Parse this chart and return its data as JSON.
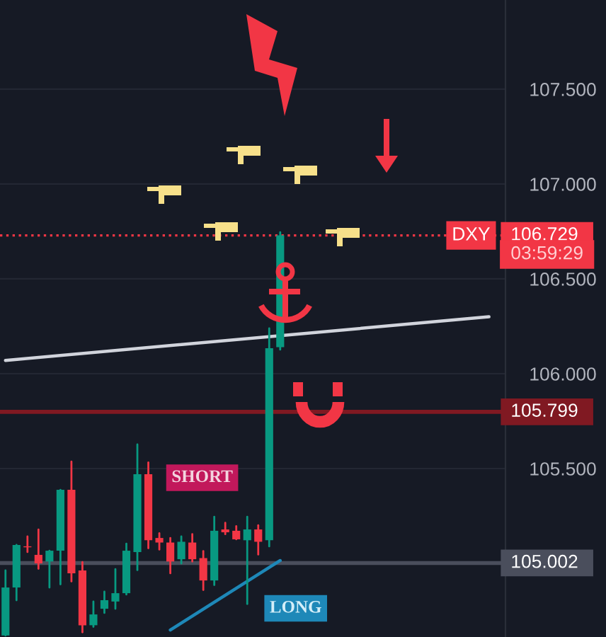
{
  "chart_data": {
    "type": "candlestick",
    "categories": [
      null,
      null,
      null,
      null,
      null,
      null,
      null,
      null,
      null,
      null,
      null,
      null,
      null,
      null,
      null,
      null,
      null,
      null,
      null,
      null,
      null,
      null,
      null,
      null,
      null,
      null,
      null,
      null,
      null,
      null,
      null,
      null,
      null,
      null,
      null,
      null,
      null,
      null,
      null,
      null,
      null,
      null,
      null,
      null,
      null,
      null
    ],
    "ohlc": [
      [
        104.62,
        104.963,
        104.62,
        104.873
      ],
      [
        104.873,
        105.097,
        104.806,
        105.097
      ],
      [
        105.09,
        105.142,
        105.06,
        105.085
      ],
      [
        105.045,
        105.179,
        104.972,
        105.0
      ],
      [
        105.01,
        105.067,
        104.873,
        105.067
      ],
      [
        105.067,
        105.388,
        104.89,
        105.388
      ],
      [
        105.388,
        105.537,
        104.905,
        104.948
      ],
      [
        104.963,
        105.007,
        104.637,
        104.674
      ],
      [
        104.674,
        104.799,
        104.666,
        104.731
      ],
      [
        104.761,
        104.851,
        104.739,
        104.806
      ],
      [
        104.799,
        104.97,
        104.761,
        104.843
      ],
      [
        104.843,
        105.104,
        104.836,
        105.067
      ],
      [
        105.06,
        105.627,
        104.965,
        105.47
      ],
      [
        105.47,
        105.532,
        105.08,
        105.122
      ],
      [
        105.134,
        105.159,
        105.073,
        105.11
      ],
      [
        105.11,
        105.134,
        104.948,
        105.01
      ],
      [
        105.022,
        105.142,
        105.0,
        105.114
      ],
      [
        105.11,
        105.154,
        105.01,
        105.022
      ],
      [
        105.028,
        105.065,
        104.86,
        104.91
      ],
      [
        104.91,
        105.246,
        104.886,
        105.172
      ],
      [
        105.179,
        105.214,
        105.154,
        105.164
      ],
      [
        105.172,
        105.196,
        105.127,
        105.127
      ],
      [
        105.122,
        105.246,
        104.786,
        105.179
      ],
      [
        105.179,
        105.201,
        105.047,
        105.114
      ],
      [
        105.122,
        106.239,
        105.09,
        106.134
      ],
      [
        106.14,
        106.746,
        106.127,
        106.729
      ],
      null,
      null,
      null,
      null,
      null,
      null,
      null,
      null,
      null,
      null,
      null,
      null,
      null,
      null,
      null,
      null,
      null,
      null,
      null,
      null
    ],
    "colors": [
      "#089981",
      "#089981",
      "#f23645",
      "#f23645",
      "#089981",
      "#089981",
      "#f23645",
      "#f23645",
      "#089981",
      "#089981",
      "#089981",
      "#089981",
      "#089981",
      "#f23645",
      "#f23645",
      "#f23645",
      "#089981",
      "#f23645",
      "#f23645",
      "#089981",
      "#f23645",
      "#f23645",
      "#089981",
      "#f23645",
      "#089981",
      "#089981",
      null,
      null,
      null,
      null,
      null,
      null,
      null,
      null,
      null,
      null,
      null,
      null,
      null,
      null,
      null,
      null,
      null,
      null,
      null,
      null
    ],
    "series": [
      {
        "type": "line",
        "values": [
          106.07,
          null,
          null,
          null,
          null,
          null,
          null,
          null,
          null,
          null,
          null,
          null,
          null,
          null,
          null,
          null,
          null,
          null,
          null,
          null,
          null,
          null,
          null,
          null,
          null,
          null,
          null,
          null,
          null,
          null,
          null,
          null,
          null,
          null,
          null,
          null,
          null,
          null,
          null,
          null,
          null,
          null,
          null,
          null,
          106.3,
          null
        ],
        "color": "#d1d4dc"
      },
      {
        "type": "line",
        "values": [
          null,
          null,
          null,
          null,
          null,
          null,
          null,
          null,
          null,
          null,
          null,
          null,
          null,
          null,
          null,
          104.649,
          null,
          null,
          null,
          null,
          null,
          null,
          null,
          null,
          null,
          105.015,
          null,
          null,
          null,
          null,
          null,
          null,
          null,
          null,
          null,
          null,
          null,
          null,
          null,
          null,
          null,
          null,
          null,
          null,
          null,
          null
        ],
        "color": "#1e88b8"
      }
    ],
    "ylim": [
      104.612,
      107.97
    ],
    "yticks": [
      {
        "value": 105.5,
        "label": "105.500"
      },
      {
        "value": 106,
        "label": "106.000"
      },
      {
        "value": 106.5,
        "label": "106.500"
      },
      {
        "value": 107,
        "label": "107.000"
      },
      {
        "value": 107.5,
        "label": "107.500"
      }
    ],
    "tick_labels": "y",
    "grid": "y",
    "ref_lines": [
      {
        "axis": "y",
        "value": 106.729,
        "label": "106.729",
        "color": "#f23645",
        "line_style": "dotted"
      },
      {
        "axis": "y",
        "value": 105.799,
        "label": "105.799",
        "color": "#801922",
        "line_style": "solid"
      },
      {
        "axis": "y",
        "value": 105.002,
        "label": "105.002",
        "color": "#4a4e5c",
        "line_style": "solid"
      }
    ],
    "annotations": [
      "DXY",
      "03:59:29",
      "SHORT",
      "LONG"
    ]
  }
}
